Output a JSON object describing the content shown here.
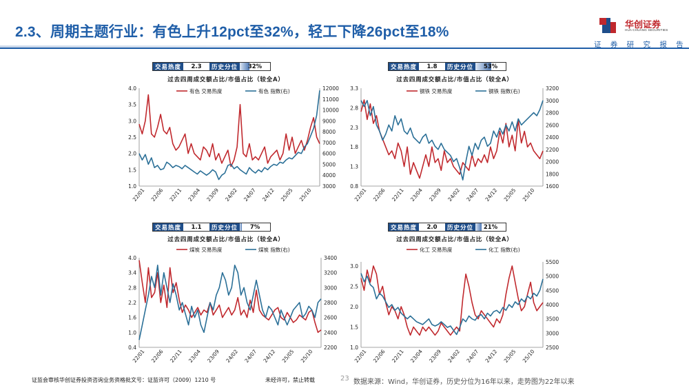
{
  "header": {
    "title": "2.3、周期主题行业：有色上升12pct至32%，轻工下降26pct至18%",
    "logo_name": "华创证券",
    "logo_sub": "HUA CHUANG SECURITIES",
    "report_label": "证 券 研 究 报 告"
  },
  "colors": {
    "red": "#c0282d",
    "blue": "#2a6f97",
    "navy": "#1f4e8a"
  },
  "panels": [
    {
      "heat_label": "交易热度",
      "heat": "2.3",
      "pct_label": "历史分位",
      "pct": "32%",
      "pct_value": 0.32,
      "title": "过去四周成交额占比/市值占比（较全A）",
      "legend_left": "有色 交易热度",
      "legend_right": "有色 指数(右)"
    },
    {
      "heat_label": "交易热度",
      "heat": "1.8",
      "pct_label": "历史分位",
      "pct": "53%",
      "pct_value": 0.53,
      "title": "过去四周成交额占比/市值占比（较全A）",
      "legend_left": "钢铁 交易热度",
      "legend_right": "钢铁 指数(右)"
    },
    {
      "heat_label": "交易热度",
      "heat": "1.1",
      "pct_label": "历史分位",
      "pct": "7%",
      "pct_value": 0.07,
      "title": "过去四周成交额占比/市值占比（较全A）",
      "legend_left": "煤炭 交易热度",
      "legend_right": "煤炭 指数(右)"
    },
    {
      "heat_label": "交易热度",
      "heat": "2.0",
      "pct_label": "历史分位",
      "pct": "21%",
      "pct_value": 0.21,
      "title": "过去四周成交额占比/市值占比（较全A）",
      "legend_left": "化工 交易热度",
      "legend_right": "化工 指数(右)"
    }
  ],
  "chart_data": [
    {
      "type": "line",
      "title": "过去四周成交额占比/市值占比（较全A）",
      "x_ticks": [
        "22/01",
        "22/06",
        "22/11",
        "23/04",
        "23/09",
        "24/02",
        "24/07",
        "24/12",
        "25/05",
        "25/10"
      ],
      "left_ticks": [
        "4.0",
        "3.5",
        "3.0",
        "2.5",
        "2.0",
        "1.5",
        "1.0"
      ],
      "ylim_left": [
        1.0,
        4.0
      ],
      "right_ticks": [
        "12000",
        "11000",
        "10000",
        "9000",
        "8000",
        "7000",
        "6000",
        "5000",
        "4000",
        "3000"
      ],
      "ylim_right": [
        3000,
        12000
      ],
      "series": [
        {
          "name": "有色 交易热度",
          "axis": "left",
          "color": "#c0282d",
          "values": [
            2.9,
            2.6,
            3.0,
            3.8,
            2.6,
            2.5,
            2.8,
            3.2,
            2.7,
            2.6,
            2.8,
            2.3,
            2.1,
            2.2,
            2.4,
            2.6,
            2.0,
            2.3,
            2.0,
            1.9,
            1.8,
            2.2,
            2.1,
            1.9,
            2.3,
            1.8,
            2.0,
            1.7,
            1.9,
            2.1,
            1.6,
            1.8,
            2.2,
            3.5,
            2.0,
            1.9,
            2.3,
            1.8,
            1.9,
            1.8,
            2.0,
            2.2,
            1.7,
            1.9,
            2.0,
            2.1,
            1.8,
            2.0,
            2.6,
            2.1,
            2.5,
            2.0,
            2.2,
            2.4,
            2.1,
            2.4,
            2.8,
            3.1,
            2.5,
            2.3
          ]
        },
        {
          "name": "有色 指数(右)",
          "axis": "right",
          "color": "#2a6f97",
          "values": [
            6000,
            5400,
            5900,
            5000,
            5600,
            4700,
            4900,
            4500,
            4600,
            5200,
            5000,
            4700,
            4900,
            4800,
            4600,
            4900,
            4700,
            4500,
            4300,
            4100,
            4400,
            4200,
            4000,
            4200,
            4500,
            4300,
            3600,
            4000,
            4200,
            4900,
            5000,
            4600,
            4800,
            4500,
            4300,
            4100,
            4700,
            4400,
            4200,
            4500,
            4300,
            4700,
            4500,
            4800,
            5000,
            4900,
            5200,
            5100,
            5400,
            5600,
            5500,
            5800,
            6100,
            6000,
            6600,
            6900,
            7600,
            8300,
            9500,
            11800
          ]
        }
      ]
    },
    {
      "type": "line",
      "title": "过去四周成交额占比/市值占比（较全A）",
      "x_ticks": [
        "22/01",
        "22/06",
        "22/11",
        "23/04",
        "23/09",
        "24/02",
        "24/07",
        "24/12",
        "25/05",
        "25/10"
      ],
      "left_ticks": [
        "3.3",
        "2.8",
        "2.3",
        "1.8",
        "1.3",
        "0.8"
      ],
      "ylim_left": [
        0.8,
        3.3
      ],
      "right_ticks": [
        "3200",
        "3000",
        "2800",
        "2600",
        "2400",
        "2200",
        "2000",
        "1800",
        "1600"
      ],
      "ylim_right": [
        1600,
        3200
      ],
      "series": [
        {
          "name": "钢铁 交易热度",
          "axis": "left",
          "color": "#c0282d",
          "values": [
            2.7,
            3.0,
            2.5,
            2.9,
            2.4,
            2.6,
            2.2,
            2.0,
            1.8,
            1.6,
            1.7,
            1.5,
            1.9,
            1.7,
            1.3,
            1.8,
            1.1,
            1.4,
            1.2,
            1.0,
            1.3,
            1.6,
            1.3,
            1.8,
            1.4,
            1.5,
            1.2,
            1.7,
            1.4,
            1.5,
            1.3,
            1.2,
            1.1,
            1.4,
            1.3,
            1.2,
            1.6,
            1.3,
            1.5,
            1.4,
            1.6,
            1.4,
            1.8,
            1.5,
            1.7,
            2.2,
            1.9,
            2.4,
            1.8,
            2.1,
            1.7,
            2.5,
            1.9,
            2.2,
            1.8,
            1.9,
            1.7,
            1.6,
            1.5,
            1.7
          ]
        },
        {
          "name": "钢铁 指数(右)",
          "axis": "right",
          "color": "#2a6f97",
          "values": [
            3000,
            2900,
            3000,
            2750,
            2900,
            2600,
            2500,
            2350,
            2450,
            2600,
            2500,
            2750,
            2600,
            2700,
            2500,
            2450,
            2550,
            2400,
            2350,
            2300,
            2400,
            2450,
            2300,
            2350,
            2250,
            2200,
            2300,
            2200,
            2150,
            2100,
            2000,
            2050,
            1900,
            1700,
            2000,
            2250,
            2100,
            2300,
            2200,
            2350,
            2400,
            2250,
            2300,
            2500,
            2400,
            2550,
            2450,
            2600,
            2500,
            2650,
            2500,
            2700,
            2600,
            2650,
            2700,
            2750,
            2800,
            2750,
            2850,
            3000
          ]
        }
      ]
    },
    {
      "type": "line",
      "title": "过去四周成交额占比/市值占比（较全A）",
      "x_ticks": [
        "22/01",
        "22/06",
        "22/11",
        "23/04",
        "23/09",
        "24/02",
        "24/07",
        "24/12",
        "25/05",
        "25/10"
      ],
      "left_ticks": [
        "4.0",
        "3.4",
        "2.8",
        "2.2",
        "1.6",
        "1.0",
        "0.4"
      ],
      "ylim_left": [
        0.4,
        4.0
      ],
      "right_ticks": [
        "3400",
        "3200",
        "3000",
        "2800",
        "2600",
        "2400",
        "2200"
      ],
      "ylim_right": [
        2200,
        3400
      ],
      "series": [
        {
          "name": "煤炭 交易热度",
          "axis": "left",
          "color": "#c0282d",
          "values": [
            3.9,
            3.0,
            2.2,
            3.6,
            2.4,
            2.6,
            3.4,
            2.2,
            2.9,
            2.0,
            3.6,
            2.6,
            3.0,
            2.3,
            1.8,
            2.1,
            1.9,
            1.6,
            1.8,
            2.0,
            1.7,
            1.9,
            1.8,
            2.2,
            1.7,
            1.9,
            2.1,
            1.6,
            1.8,
            2.0,
            1.7,
            1.9,
            2.4,
            1.7,
            1.9,
            1.6,
            2.3,
            1.8,
            2.7,
            1.9,
            1.7,
            1.6,
            1.5,
            1.7,
            1.9,
            2.0,
            1.6,
            1.5,
            1.8,
            1.6,
            1.4,
            1.5,
            1.7,
            1.6,
            1.5,
            1.8,
            1.9,
            1.4,
            1.0,
            1.1
          ]
        },
        {
          "name": "煤炭 指数(右)",
          "axis": "right",
          "color": "#2a6f97",
          "values": [
            2300,
            2500,
            2700,
            2900,
            3150,
            3000,
            3300,
            2900,
            3200,
            3000,
            2800,
            3050,
            2900,
            2700,
            2800,
            2650,
            2500,
            2750,
            2600,
            2700,
            2500,
            2400,
            2600,
            2800,
            2700,
            2900,
            3000,
            3200,
            3100,
            2900,
            3000,
            3300,
            3200,
            2900,
            3000,
            2800,
            2700,
            2900,
            3100,
            2900,
            2700,
            2600,
            2750,
            2700,
            2600,
            2500,
            2700,
            2600,
            2500,
            2600,
            2700,
            2750,
            2800,
            2600,
            2650,
            2750,
            2700,
            2600,
            2800,
            2850
          ]
        }
      ]
    },
    {
      "type": "line",
      "title": "过去四周成交额占比/市值占比（较全A）",
      "x_ticks": [
        "22/01",
        "22/06",
        "22/11",
        "23/04",
        "23/09",
        "24/02",
        "24/07",
        "24/12",
        "25/05",
        "25/10"
      ],
      "left_ticks": [
        "3.0",
        "2.5",
        "2.0",
        "1.5",
        "1.0"
      ],
      "ylim_left": [
        1.0,
        3.1
      ],
      "right_ticks": [
        "5500",
        "5000",
        "4500",
        "4000",
        "3500",
        "3000",
        "2500"
      ],
      "ylim_right": [
        2500,
        5500
      ],
      "series": [
        {
          "name": "化工 交易热度",
          "axis": "left",
          "color": "#c0282d",
          "values": [
            2.7,
            2.4,
            2.9,
            2.6,
            3.0,
            2.8,
            2.3,
            2.5,
            2.1,
            1.8,
            2.0,
            1.9,
            1.7,
            2.0,
            1.8,
            1.5,
            1.3,
            1.5,
            1.4,
            1.3,
            1.5,
            1.4,
            1.5,
            1.4,
            1.3,
            1.4,
            1.6,
            1.5,
            1.4,
            1.3,
            1.4,
            1.5,
            1.4,
            2.2,
            2.8,
            2.5,
            2.1,
            1.8,
            1.7,
            1.9,
            1.8,
            1.7,
            1.6,
            1.5,
            1.7,
            1.6,
            1.8,
            2.3,
            2.7,
            3.0,
            2.6,
            2.2,
            1.9,
            2.0,
            2.3,
            2.6,
            2.1,
            1.9,
            2.0,
            2.1
          ]
        },
        {
          "name": "化工 指数(右)",
          "axis": "right",
          "color": "#2a6f97",
          "values": [
            5100,
            4800,
            5000,
            4700,
            4600,
            4200,
            4400,
            4300,
            4100,
            3900,
            4000,
            3800,
            3900,
            3700,
            3600,
            3500,
            3600,
            3500,
            3400,
            3350,
            3300,
            3400,
            3500,
            3300,
            3250,
            3300,
            3400,
            3300,
            3200,
            3250,
            3100,
            2950,
            3200,
            3500,
            3400,
            3600,
            3500,
            3450,
            3600,
            3650,
            3500,
            3700,
            3600,
            3750,
            3800,
            3700,
            3900,
            3800,
            4000,
            3900,
            4100,
            4000,
            4200,
            4100,
            4300,
            4200,
            4400,
            4300,
            4500,
            4900
          ]
        }
      ]
    }
  ],
  "footer": {
    "left": "证监会审核华创证券投资咨询业务资格批文号：证监许可（2009）1210 号",
    "middle": "未经许可，禁止转载",
    "page": "23",
    "source": "数据来源：Wind，华创证券，历史分位为16年以来，走势图为22年以来"
  }
}
